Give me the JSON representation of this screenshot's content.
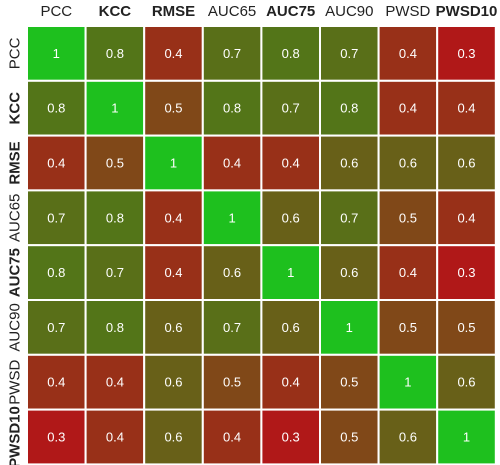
{
  "chart_data": {
    "type": "heatmap",
    "title": "",
    "x_labels": [
      "PCC",
      "KCC",
      "RMSE",
      "AUC65",
      "AUC75",
      "AUC90",
      "PWSD",
      "PWSD10"
    ],
    "y_labels": [
      "PCC",
      "KCC",
      "RMSE",
      "AUC65",
      "AUC75",
      "AUC90",
      "PWSD",
      "PWSD10"
    ],
    "bold_labels": [
      "KCC",
      "RMSE",
      "AUC75",
      "PWSD10"
    ],
    "values": [
      [
        1,
        0.8,
        0.4,
        0.7,
        0.8,
        0.7,
        0.4,
        0.3
      ],
      [
        0.8,
        1,
        0.5,
        0.8,
        0.7,
        0.8,
        0.4,
        0.4
      ],
      [
        0.4,
        0.5,
        1,
        0.4,
        0.4,
        0.6,
        0.6,
        0.6
      ],
      [
        0.7,
        0.8,
        0.4,
        1,
        0.6,
        0.7,
        0.5,
        0.4
      ],
      [
        0.8,
        0.7,
        0.4,
        0.6,
        1,
        0.6,
        0.4,
        0.3
      ],
      [
        0.7,
        0.8,
        0.6,
        0.7,
        0.6,
        1,
        0.5,
        0.5
      ],
      [
        0.4,
        0.4,
        0.6,
        0.5,
        0.4,
        0.5,
        1,
        0.6
      ],
      [
        0.3,
        0.4,
        0.6,
        0.4,
        0.3,
        0.5,
        0.6,
        1
      ]
    ],
    "color_scale": {
      "low": "#b01818",
      "mid": "#5c6c18",
      "high": "#1ec01e",
      "low_value": 0.3,
      "high_value": 1
    },
    "cell_border_color": "#ffffff",
    "label_color": "#ffffff",
    "legend": "none",
    "grid": false
  }
}
